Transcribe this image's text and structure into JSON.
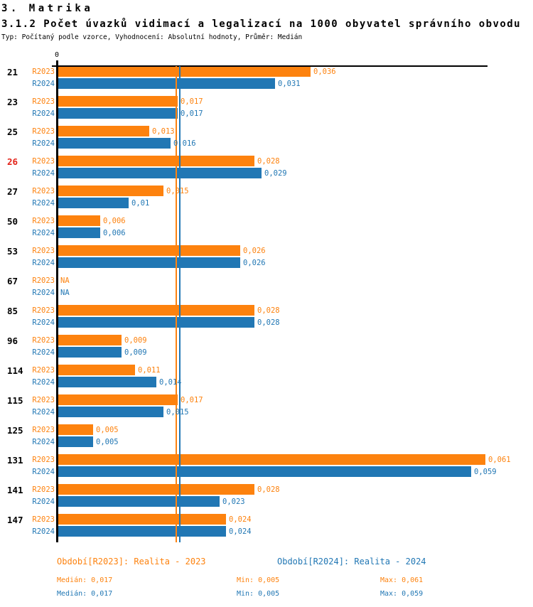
{
  "page": {
    "title": "3. Matrika",
    "subtitle": "3.1.2 Počet úvazků vidimací a legalizací na 1000 obyvatel správního obvodu",
    "meta": "Typ: Počítaný podle vzorce, Vyhodnocení: Absolutní hodnoty, Průměr: Medián"
  },
  "colors": {
    "series_2023": "#fd820e",
    "series_2024": "#2177b4",
    "highlight_category": "#e32219",
    "axis": "#000000"
  },
  "axis": {
    "zero_label": "0",
    "xlim": [
      0,
      0.0615
    ]
  },
  "chart_data": {
    "type": "bar",
    "orientation": "horizontal",
    "title": "3.1.2 Počet úvazků vidimací a legalizací na 1000 obyvatel správního obvodu",
    "categories": [
      "21",
      "23",
      "25",
      "26",
      "27",
      "50",
      "53",
      "67",
      "85",
      "96",
      "114",
      "115",
      "125",
      "131",
      "141",
      "147"
    ],
    "highlighted_categories": [
      "26"
    ],
    "na_label": "NA",
    "xlim": [
      0,
      0.0615
    ],
    "grid": false,
    "legend_position": "bottom",
    "series": [
      {
        "name": "R2023",
        "color": "#fd820e",
        "period_label": "Období[R2023]: Realita - 2023",
        "values": [
          0.036,
          0.017,
          0.013,
          0.028,
          0.015,
          0.006,
          0.026,
          null,
          0.028,
          0.009,
          0.011,
          0.017,
          0.005,
          0.061,
          0.028,
          0.024
        ],
        "value_labels": [
          "0,036",
          "0,017",
          "0,013",
          "0,028",
          "0,015",
          "0,006",
          "0,026",
          "NA",
          "0,028",
          "0,009",
          "0,011",
          "0,017",
          "0,005",
          "0,061",
          "0,028",
          "0,024"
        ],
        "median": 0.017,
        "min": 0.005,
        "max": 0.061
      },
      {
        "name": "R2024",
        "color": "#2177b4",
        "period_label": "Období[R2024]: Realita - 2024",
        "values": [
          0.031,
          0.017,
          0.016,
          0.029,
          0.01,
          0.006,
          0.026,
          null,
          0.028,
          0.009,
          0.014,
          0.015,
          0.005,
          0.059,
          0.023,
          0.024
        ],
        "value_labels": [
          "0,031",
          "0,017",
          "0,016",
          "0,029",
          "0,01",
          "0,006",
          "0,026",
          "NA",
          "0,028",
          "0,009",
          "0,014",
          "0,015",
          "0,005",
          "0,059",
          "0,023",
          "0,024"
        ],
        "median": 0.017,
        "min": 0.005,
        "max": 0.059
      }
    ]
  },
  "legend": {
    "r2023": "Období[R2023]: Realita - 2023",
    "r2024": "Období[R2024]: Realita - 2024"
  },
  "stats": {
    "r2023": {
      "median": "Medián: 0,017",
      "min": "Min: 0,005",
      "max": "Max: 0,061"
    },
    "r2024": {
      "median": "Medián: 0,017",
      "min": "Min: 0,005",
      "max": "Max: 0,059"
    }
  }
}
